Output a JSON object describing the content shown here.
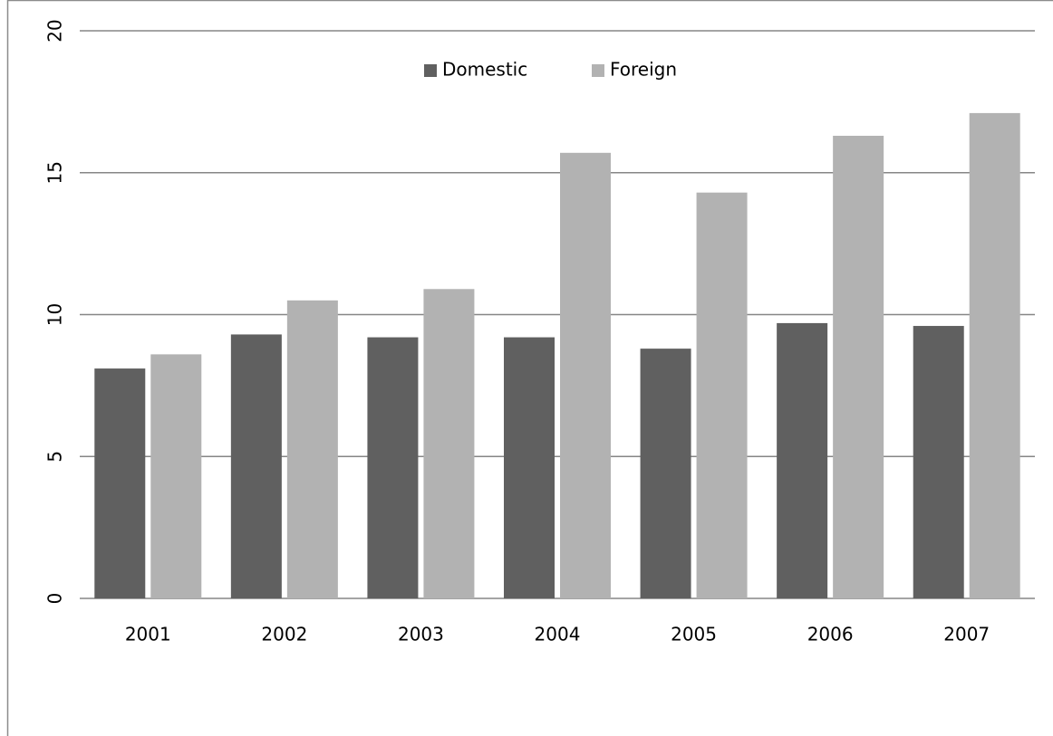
{
  "chart_data": {
    "type": "bar",
    "categories": [
      "2001",
      "2002",
      "2003",
      "2004",
      "2005",
      "2006",
      "2007"
    ],
    "series": [
      {
        "name": "Domestic",
        "color": "#606060",
        "values": [
          8.1,
          9.3,
          9.2,
          9.2,
          8.8,
          9.7,
          9.6
        ]
      },
      {
        "name": "Foreign",
        "color": "#b2b2b2",
        "values": [
          8.6,
          10.5,
          10.9,
          15.7,
          14.3,
          16.3,
          17.1
        ]
      }
    ],
    "ylim": [
      0,
      20
    ],
    "yticks": [
      0,
      5,
      10,
      15,
      20
    ],
    "grid": true,
    "legend": "top"
  }
}
